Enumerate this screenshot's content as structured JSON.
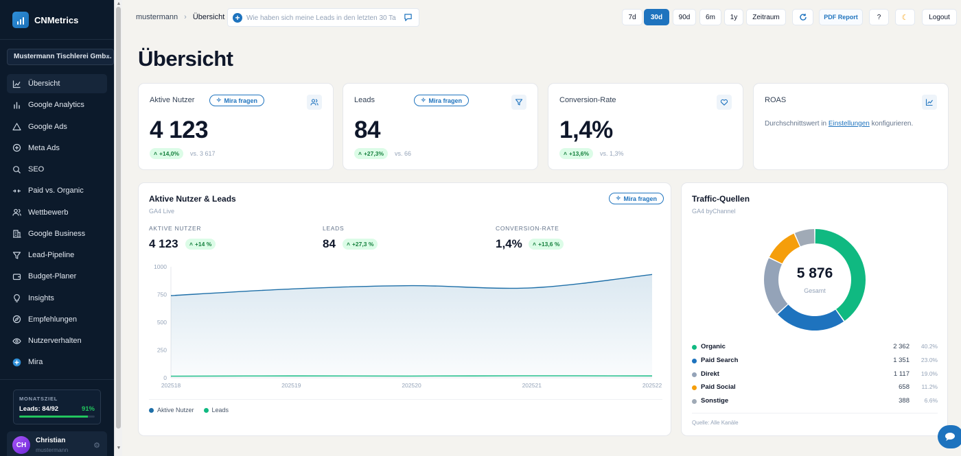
{
  "app": {
    "name": "CNMetrics",
    "company": "Mustermann Tischlerei Gmb..."
  },
  "nav": [
    {
      "label": "Übersicht",
      "icon": "line-chart-icon",
      "active": true
    },
    {
      "label": "Google Analytics",
      "icon": "bar-chart-icon"
    },
    {
      "label": "Google Ads",
      "icon": "triangle-icon"
    },
    {
      "label": "Meta Ads",
      "icon": "plus-circle-icon"
    },
    {
      "label": "SEO",
      "icon": "search-icon"
    },
    {
      "label": "Paid vs. Organic",
      "icon": "split-icon"
    },
    {
      "label": "Wettbewerb",
      "icon": "users-icon"
    },
    {
      "label": "Google Business",
      "icon": "building-icon"
    },
    {
      "label": "Lead-Pipeline",
      "icon": "funnel-icon"
    },
    {
      "label": "Budget-Planer",
      "icon": "wallet-icon"
    },
    {
      "label": "Insights",
      "icon": "lightbulb-icon"
    },
    {
      "label": "Empfehlungen",
      "icon": "compass-icon"
    },
    {
      "label": "Nutzerverhalten",
      "icon": "eye-icon"
    },
    {
      "label": "Mira",
      "icon": "mira-icon"
    }
  ],
  "goal": {
    "title": "MONATSZIEL",
    "label": "Leads: 84/92",
    "percent_text": "91%",
    "progress": 0.91
  },
  "user": {
    "initials": "CH",
    "name": "Christian",
    "handle": "mustermann"
  },
  "breadcrumb": {
    "root": "mustermann",
    "current": "Übersicht"
  },
  "ask": {
    "placeholder": "Wie haben sich meine Leads in den letzten 30 Ta"
  },
  "toolbar": {
    "ranges": [
      "7d",
      "30d",
      "90d",
      "6m",
      "1y",
      "Zeitraum"
    ],
    "active_range": "30d",
    "pdf": "PDF Report",
    "help": "?",
    "logout": "Logout"
  },
  "page_title": "Übersicht",
  "mira_label": "Mira fragen",
  "kpis": [
    {
      "label": "Aktive Nutzer",
      "value": "4 123",
      "delta": "+14,0%",
      "vs": "vs. 3 617"
    },
    {
      "label": "Leads",
      "value": "84",
      "delta": "+27,3%",
      "vs": "vs. 66"
    },
    {
      "label": "Conversion-Rate",
      "value": "1,4%",
      "delta": "+13,6%",
      "vs": "vs. 1,3%"
    },
    {
      "label": "ROAS",
      "note_pre": "Durchschnittswert in ",
      "note_link": "Einstellungen",
      "note_post": " konfigurieren."
    }
  ],
  "overview_chart": {
    "title": "Aktive Nutzer & Leads",
    "subtitle": "GA4 Live",
    "metrics": [
      {
        "label": "AKTIVE NUTZER",
        "value": "4 123",
        "delta": "+14 %"
      },
      {
        "label": "LEADS",
        "value": "84",
        "delta": "+27,3 %"
      },
      {
        "label": "CONVERSION-RATE",
        "value": "1,4%",
        "delta": "+13,6 %"
      }
    ],
    "legend": [
      "Aktive Nutzer",
      "Leads"
    ]
  },
  "traffic": {
    "title": "Traffic-Quellen",
    "subtitle": "GA4 byChannel",
    "total": "5 876",
    "total_label": "Gesamt",
    "rows": [
      {
        "name": "Organic",
        "count": "2 362",
        "pct": "40.2%",
        "color": "#10b981"
      },
      {
        "name": "Paid Search",
        "count": "1 351",
        "pct": "23.0%",
        "color": "#1e73be"
      },
      {
        "name": "Direkt",
        "count": "1 117",
        "pct": "19.0%",
        "color": "#94a3b8"
      },
      {
        "name": "Paid Social",
        "count": "658",
        "pct": "11.2%",
        "color": "#f59e0b"
      },
      {
        "name": "Sonstige",
        "count": "388",
        "pct": "6.6%",
        "color": "#a0aab6"
      }
    ],
    "source": "Quelle: Alle Kanäle"
  },
  "chart_data": [
    {
      "type": "area",
      "x": [
        "202518",
        "202519",
        "202520",
        "202521",
        "202522"
      ],
      "ylim": [
        0,
        1000
      ],
      "yticks": [
        "1000",
        "750",
        "500",
        "250",
        "0"
      ],
      "series": [
        {
          "name": "Aktive Nutzer",
          "values": [
            740,
            800,
            830,
            810,
            930
          ],
          "color": "#1e6fa8"
        },
        {
          "name": "Leads",
          "values": [
            15,
            17,
            16,
            18,
            17
          ],
          "color": "#10b981"
        }
      ]
    },
    {
      "type": "pie",
      "categories": [
        "Organic",
        "Paid Search",
        "Direkt",
        "Paid Social",
        "Sonstige"
      ],
      "values": [
        2362,
        1351,
        1117,
        658,
        388
      ]
    }
  ]
}
